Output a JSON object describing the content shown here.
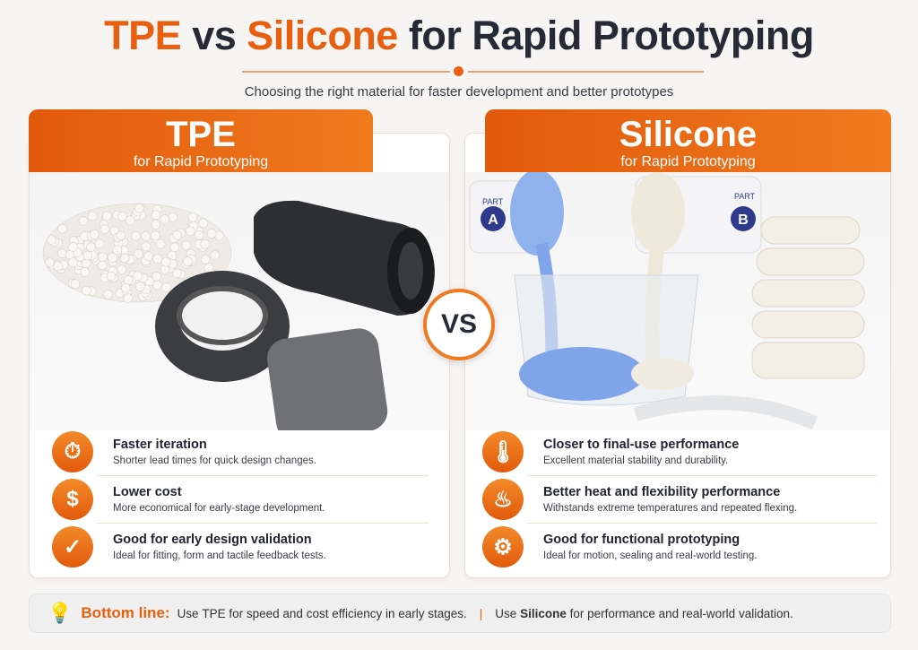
{
  "title": {
    "part1": "TPE",
    "part2": "vs",
    "part3": "Silicone",
    "part4": "for Rapid Prototyping"
  },
  "subtitle": "Choosing the right material for faster development and better prototypes",
  "accent_color": "#e8600f",
  "vs_label": "VS",
  "left": {
    "title": "TPE",
    "subtitle": "for Rapid Prototyping",
    "features": [
      {
        "icon": "stopwatch-icon",
        "heading": "Faster iteration",
        "desc": "Shorter lead times for quick design changes."
      },
      {
        "icon": "dollar-icon",
        "heading": "Lower cost",
        "desc": "More economical for early-stage development."
      },
      {
        "icon": "checkmark-icon",
        "heading": "Good for early design validation",
        "desc": "Ideal for fitting, form and tactile feedback tests."
      }
    ]
  },
  "right": {
    "title": "Silicone",
    "subtitle": "for Rapid Prototyping",
    "part_a": {
      "label": "PART",
      "letter": "A"
    },
    "part_b": {
      "label": "PART",
      "letter": "B"
    },
    "features": [
      {
        "icon": "thermometer-icon",
        "heading": "Closer to final-use performance",
        "desc": "Excellent material stability and durability."
      },
      {
        "icon": "heat-waves-icon",
        "heading": "Better heat and flexibility performance",
        "desc": "Withstands extreme temperatures and repeated flexing."
      },
      {
        "icon": "gear-icon",
        "heading": "Good for functional prototyping",
        "desc": "Ideal for motion, sealing and real-world testing."
      }
    ]
  },
  "bottom": {
    "label": "Bottom line:",
    "tpe_pre": "Use",
    "tpe_word": "TPE",
    "tpe_post": "for speed and cost efficiency in early stages.",
    "sil_pre": "Use",
    "sil_word": "Silicone",
    "sil_post": "for performance and real-world validation."
  }
}
